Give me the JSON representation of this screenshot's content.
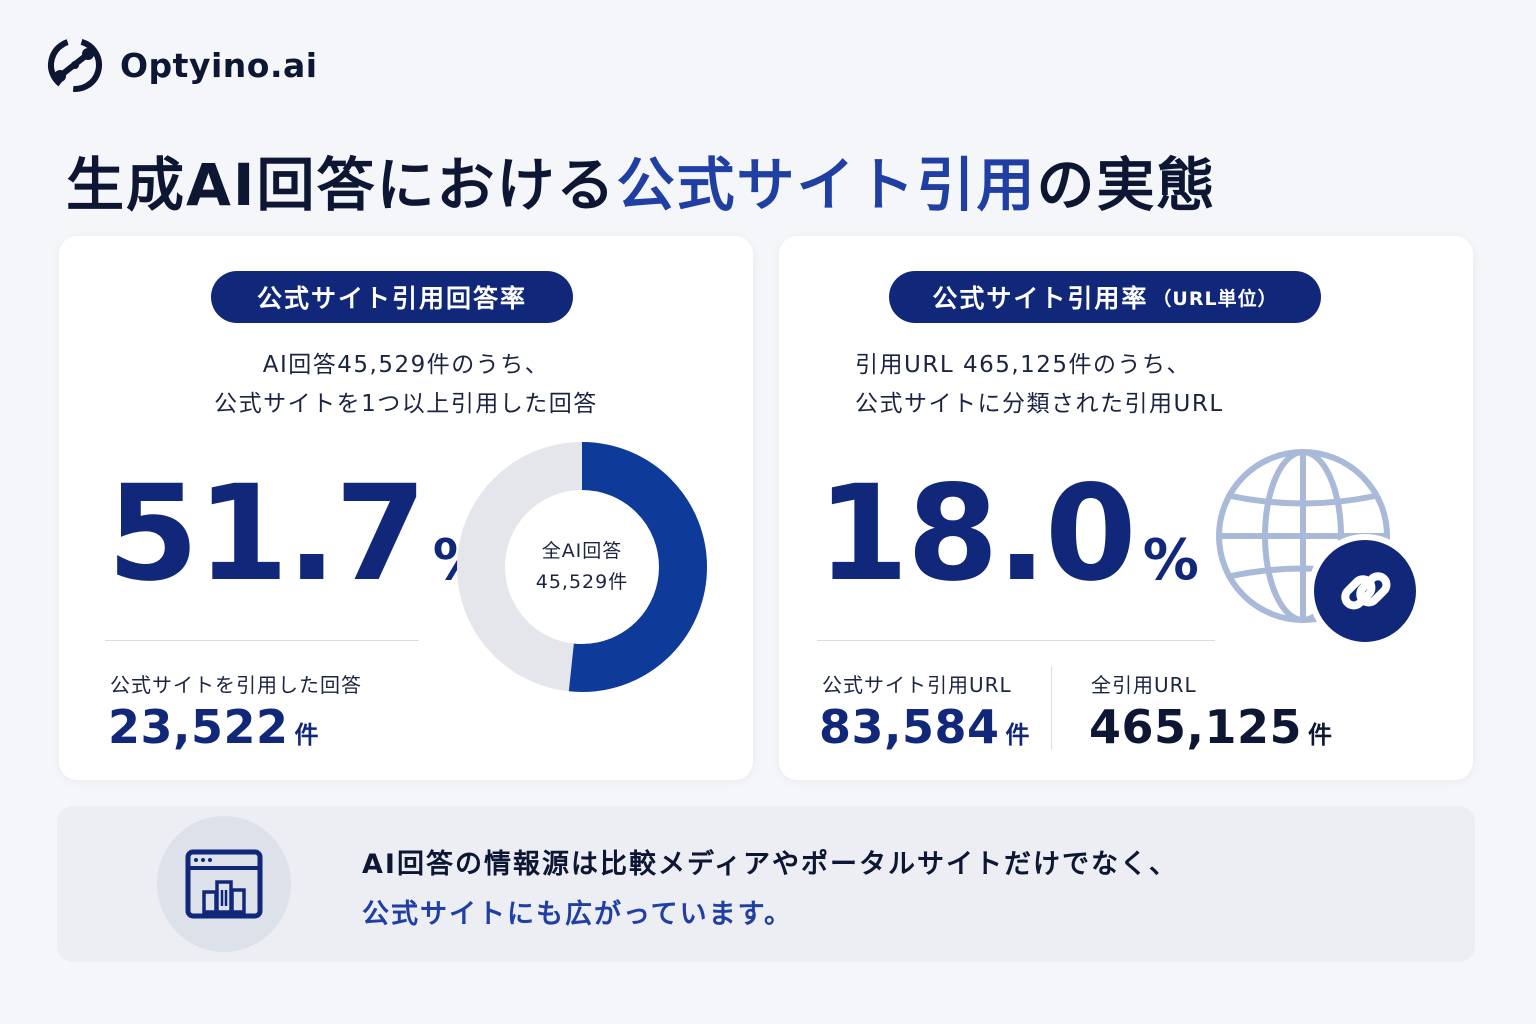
{
  "brand": {
    "name": "Optyino.ai",
    "logo_icon": "orbit-link-logo"
  },
  "headline": {
    "part1": "生成AI回答における",
    "highlight": "公式サイト引用",
    "part2": "の実態"
  },
  "colors": {
    "navy": "#11287a",
    "accent": "#1f3fa3",
    "donut_fill": "#0e3a9a",
    "donut_rest": "#e4e6ec",
    "globe": "#a9b9d8"
  },
  "left_card": {
    "badge": "公式サイト引用回答率",
    "desc_line1": "AI回答45,529件のうち、",
    "desc_line2": "公式サイトを1つ以上引用した回答",
    "value": "51.7",
    "unit": "%",
    "sub_label": "公式サイトを引用した回答",
    "sub_value": "23,522",
    "sub_unit": "件",
    "donut_center_line1": "全AI回答",
    "donut_center_line2": "45,529件"
  },
  "right_card": {
    "badge": "公式サイト引用率",
    "badge_note": "（URL単位）",
    "desc_line1": "引用URL 465,125件のうち、",
    "desc_line2": "公式サイトに分類された引用URL",
    "value": "18.0",
    "unit": "%",
    "stat1_label": "公式サイト引用URL",
    "stat1_value": "83,584",
    "stat1_unit": "件",
    "stat2_label": "全引用URL",
    "stat2_value": "465,125",
    "stat2_unit": "件",
    "icon": "globe-link-icon"
  },
  "banner": {
    "line1": "AI回答の情報源は比較メディアやポータルサイトだけでなく、",
    "line2": "公式サイトにも広がっています。",
    "icon": "browser-buildings-icon"
  },
  "chart_data": [
    {
      "type": "pie",
      "title": "公式サイト引用回答率",
      "center_label": "全AI回答 45,529件",
      "slices": [
        {
          "label": "公式サイトを引用した回答",
          "value": 23522,
          "percent": 51.7
        },
        {
          "value": 22007,
          "percent": 48.3
        }
      ],
      "total": 45529
    },
    {
      "type": "table",
      "title": "公式サイト引用率（URL単位）",
      "rows": [
        {
          "label": "公式サイト引用URL",
          "value": 83584
        },
        {
          "label": "全引用URL",
          "value": 465125
        }
      ],
      "rate_percent": 18.0
    }
  ]
}
